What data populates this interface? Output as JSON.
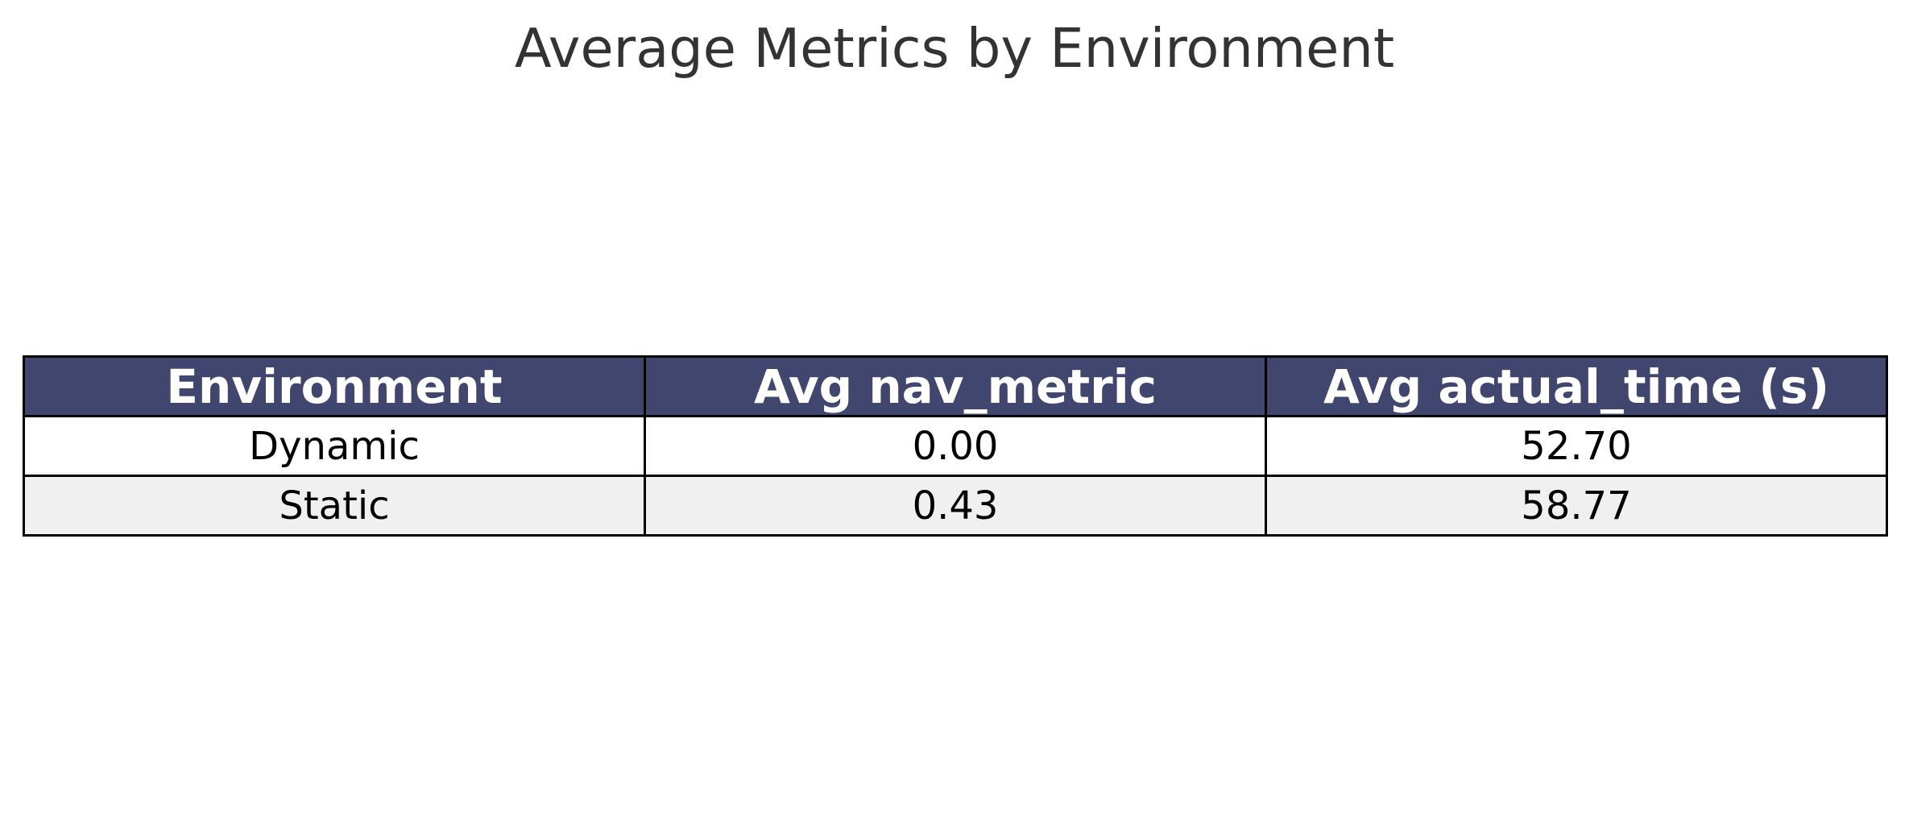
{
  "chart_data": {
    "type": "table",
    "title": "Average Metrics by Environment",
    "columns": [
      "Environment",
      "Avg nav_metric",
      "Avg actual_time (s)"
    ],
    "rows": [
      [
        "Dynamic",
        "0.00",
        "52.70"
      ],
      [
        "Static",
        "0.43",
        "58.77"
      ]
    ],
    "colors": {
      "header_background": "#40466e",
      "header_text": "#ffffff",
      "alternate_row": "#f0f0f0",
      "border": "#000000"
    }
  }
}
